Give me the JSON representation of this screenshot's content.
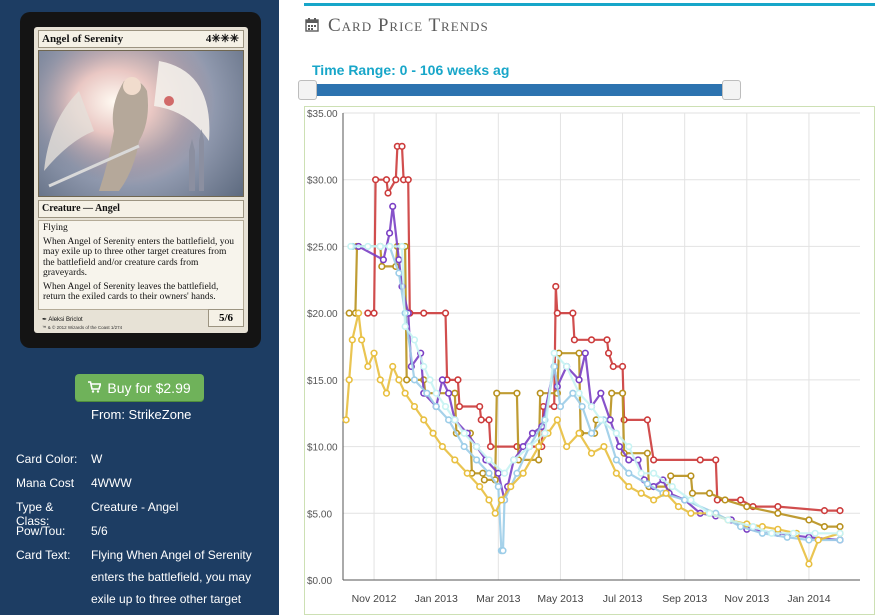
{
  "card": {
    "name": "Angel of Serenity",
    "mana_symbol": "4✳✳✳",
    "type_line": "Creature — Angel",
    "rules": [
      "Flying",
      "When Angel of Serenity enters the battlefield, you may exile up to three other target creatures from the battlefield and/or creature cards from graveyards.",
      "When Angel of Serenity leaves the battlefield, return the exiled cards to their owners' hands."
    ],
    "pt": "5/6",
    "artist": "Aleksi Briclot",
    "copyright": "™ & © 2012 Wizards of the Coast 1/274"
  },
  "buy": {
    "label": "Buy for $2.99",
    "icon": "shopping-cart-icon",
    "from": "From: StrikeZone",
    "color": "#6fb25a"
  },
  "info": [
    {
      "key": "Card Color:",
      "value": "W"
    },
    {
      "key": "Mana Cost",
      "value": "4WWW"
    },
    {
      "key": "Type & Class:",
      "value": "Creature - Angel"
    },
    {
      "key": "Pow/Tou:",
      "value": "5/6"
    },
    {
      "key": "Card Text:",
      "value": "Flying When Angel of Serenity enters the battlefield, you may exile up to three other target"
    }
  ],
  "header": {
    "title": "Card Price Trends",
    "icon": "calendar-icon",
    "accent": "#17a6c9"
  },
  "time_range": {
    "label": "Time Range: 0 - 106 weeks ag",
    "start": 0,
    "end": 106
  },
  "chart_data": {
    "type": "line",
    "y_ticks": [
      "$0.00",
      "$5.00",
      "$10.00",
      "$15.00",
      "$20.00",
      "$25.00",
      "$30.00",
      "$35.00"
    ],
    "ylim": [
      0,
      35
    ],
    "x_ticks": [
      "Nov 2012",
      "Jan 2013",
      "Mar 2013",
      "May 2013",
      "Jul 2013",
      "Sep 2013",
      "Nov 2013",
      "Jan 2014"
    ],
    "x_tick_pos": [
      1.0,
      3.0,
      5.0,
      7.0,
      9.0,
      11.0,
      13.0,
      15.0
    ],
    "xlim": [
      0,
      16
    ],
    "grid": true,
    "series": [
      {
        "color": "#cc3b3b",
        "points": [
          [
            0.8,
            20
          ],
          [
            1.0,
            20
          ],
          [
            1.05,
            30
          ],
          [
            1.4,
            30
          ],
          [
            1.45,
            29
          ],
          [
            1.7,
            30
          ],
          [
            1.75,
            32.5
          ],
          [
            1.9,
            32.5
          ],
          [
            1.95,
            30
          ],
          [
            2.1,
            30
          ],
          [
            2.15,
            20
          ],
          [
            2.6,
            20
          ],
          [
            3.3,
            20
          ],
          [
            3.35,
            15
          ],
          [
            3.7,
            15
          ],
          [
            3.75,
            13
          ],
          [
            4.4,
            13
          ],
          [
            4.45,
            12
          ],
          [
            4.7,
            12
          ],
          [
            4.75,
            10
          ],
          [
            5.6,
            10
          ],
          [
            6.0,
            10
          ],
          [
            6.4,
            10
          ],
          [
            6.45,
            13
          ],
          [
            6.8,
            13
          ],
          [
            6.85,
            22
          ],
          [
            6.9,
            20
          ],
          [
            7.4,
            20
          ],
          [
            7.45,
            18
          ],
          [
            8.0,
            18
          ],
          [
            8.5,
            18
          ],
          [
            8.55,
            17
          ],
          [
            8.7,
            16
          ],
          [
            9.0,
            16
          ],
          [
            9.05,
            12
          ],
          [
            9.8,
            12
          ],
          [
            10.0,
            9
          ],
          [
            11.5,
            9
          ],
          [
            12.0,
            9
          ],
          [
            12.05,
            6
          ],
          [
            12.8,
            6
          ],
          [
            13.2,
            5.5
          ],
          [
            14.0,
            5.5
          ],
          [
            15.5,
            5.2
          ],
          [
            16.0,
            5.2
          ]
        ]
      },
      {
        "color": "#b8911d",
        "points": [
          [
            0.2,
            20
          ],
          [
            0.4,
            20
          ],
          [
            0.45,
            25
          ],
          [
            1.2,
            25
          ],
          [
            1.25,
            23.5
          ],
          [
            1.7,
            23.5
          ],
          [
            1.75,
            25
          ],
          [
            2.0,
            25
          ],
          [
            2.05,
            15
          ],
          [
            2.6,
            15
          ],
          [
            2.65,
            14
          ],
          [
            3.6,
            14
          ],
          [
            3.65,
            11
          ],
          [
            4.1,
            11
          ],
          [
            4.15,
            8
          ],
          [
            4.5,
            8
          ],
          [
            4.55,
            7.5
          ],
          [
            4.9,
            7.5
          ],
          [
            4.95,
            14
          ],
          [
            5.6,
            14
          ],
          [
            5.65,
            9
          ],
          [
            6.3,
            9
          ],
          [
            6.35,
            14
          ],
          [
            6.9,
            14
          ],
          [
            6.95,
            17
          ],
          [
            7.6,
            17
          ],
          [
            7.65,
            11
          ],
          [
            8.1,
            11
          ],
          [
            8.15,
            12
          ],
          [
            8.6,
            12
          ],
          [
            8.65,
            14
          ],
          [
            9.0,
            14
          ],
          [
            9.05,
            9.5
          ],
          [
            9.8,
            9.5
          ],
          [
            9.85,
            7
          ],
          [
            10.5,
            7
          ],
          [
            10.55,
            7.8
          ],
          [
            11.2,
            7.8
          ],
          [
            11.25,
            6.5
          ],
          [
            11.8,
            6.5
          ],
          [
            12.3,
            6
          ],
          [
            13.0,
            5.5
          ],
          [
            14.0,
            5
          ],
          [
            15.0,
            4.5
          ],
          [
            15.5,
            4
          ],
          [
            16.0,
            4
          ]
        ]
      },
      {
        "color": "#7a3fc4",
        "points": [
          [
            0.5,
            25
          ],
          [
            1.3,
            24
          ],
          [
            1.5,
            26
          ],
          [
            1.6,
            28
          ],
          [
            1.8,
            24
          ],
          [
            1.9,
            22
          ],
          [
            2.1,
            20
          ],
          [
            2.2,
            16
          ],
          [
            2.5,
            17
          ],
          [
            2.6,
            14
          ],
          [
            3.0,
            13
          ],
          [
            3.2,
            15
          ],
          [
            3.4,
            14
          ],
          [
            3.6,
            12
          ],
          [
            4.0,
            11
          ],
          [
            4.3,
            10
          ],
          [
            4.6,
            9
          ],
          [
            5.0,
            8
          ],
          [
            5.2,
            6
          ],
          [
            5.3,
            7
          ],
          [
            5.5,
            9
          ],
          [
            5.8,
            10
          ],
          [
            6.1,
            11
          ],
          [
            6.4,
            11.5
          ],
          [
            6.8,
            16
          ],
          [
            6.9,
            14.5
          ],
          [
            7.2,
            16
          ],
          [
            7.6,
            15
          ],
          [
            7.8,
            17
          ],
          [
            8.0,
            13
          ],
          [
            8.3,
            14
          ],
          [
            8.6,
            12
          ],
          [
            8.9,
            10
          ],
          [
            9.2,
            9
          ],
          [
            9.5,
            9
          ],
          [
            9.7,
            7.5
          ],
          [
            10.0,
            7
          ],
          [
            10.3,
            7.5
          ],
          [
            10.5,
            6.5
          ],
          [
            11.0,
            6.0
          ],
          [
            11.5,
            5.0
          ],
          [
            12.0,
            4.8
          ],
          [
            12.5,
            4.5
          ],
          [
            13.0,
            3.8
          ],
          [
            14.0,
            3.5
          ],
          [
            15.0,
            3.2
          ],
          [
            16.0,
            3.0
          ]
        ]
      },
      {
        "color": "#9ccde8",
        "points": [
          [
            0.3,
            25
          ],
          [
            1.5,
            25
          ],
          [
            1.8,
            23
          ],
          [
            2.0,
            20
          ],
          [
            2.3,
            15
          ],
          [
            2.7,
            14
          ],
          [
            3.0,
            13
          ],
          [
            3.4,
            12
          ],
          [
            3.9,
            10
          ],
          [
            4.3,
            9
          ],
          [
            4.7,
            8
          ],
          [
            5.0,
            7
          ],
          [
            5.1,
            2.2
          ],
          [
            5.15,
            2.2
          ],
          [
            5.2,
            6
          ],
          [
            5.6,
            8
          ],
          [
            6.0,
            10
          ],
          [
            6.5,
            12
          ],
          [
            6.8,
            16
          ],
          [
            7.0,
            13
          ],
          [
            7.4,
            14
          ],
          [
            7.7,
            13
          ],
          [
            8.0,
            11
          ],
          [
            8.4,
            12
          ],
          [
            8.8,
            9
          ],
          [
            9.2,
            8
          ],
          [
            9.8,
            7.2
          ],
          [
            10.3,
            6.5
          ],
          [
            11.0,
            6
          ],
          [
            12.0,
            5
          ],
          [
            12.8,
            4
          ],
          [
            13.5,
            3.5
          ],
          [
            14.3,
            3.2
          ],
          [
            15.0,
            3.0
          ],
          [
            16.0,
            3.0
          ]
        ]
      },
      {
        "color": "#e8bf3f",
        "points": [
          [
            0.1,
            12
          ],
          [
            0.2,
            15
          ],
          [
            0.3,
            18
          ],
          [
            0.5,
            20
          ],
          [
            0.6,
            18
          ],
          [
            0.8,
            16
          ],
          [
            1.0,
            17
          ],
          [
            1.2,
            15
          ],
          [
            1.4,
            14
          ],
          [
            1.6,
            16
          ],
          [
            1.8,
            15
          ],
          [
            2.0,
            14
          ],
          [
            2.3,
            13
          ],
          [
            2.6,
            12
          ],
          [
            2.9,
            11
          ],
          [
            3.2,
            10
          ],
          [
            3.6,
            9
          ],
          [
            4.0,
            8
          ],
          [
            4.4,
            7
          ],
          [
            4.7,
            6
          ],
          [
            4.9,
            5
          ],
          [
            5.1,
            6
          ],
          [
            5.4,
            7
          ],
          [
            5.8,
            8
          ],
          [
            6.3,
            10
          ],
          [
            6.6,
            11
          ],
          [
            6.9,
            12
          ],
          [
            7.2,
            10
          ],
          [
            7.6,
            11
          ],
          [
            8.0,
            9.5
          ],
          [
            8.4,
            10
          ],
          [
            8.8,
            8
          ],
          [
            9.2,
            7
          ],
          [
            9.6,
            6.5
          ],
          [
            10.0,
            6
          ],
          [
            10.4,
            6.5
          ],
          [
            10.8,
            5.5
          ],
          [
            11.2,
            5
          ],
          [
            11.8,
            5
          ],
          [
            12.4,
            4.5
          ],
          [
            13.0,
            4.2
          ],
          [
            13.5,
            4
          ],
          [
            14.0,
            3.8
          ],
          [
            14.6,
            3.5
          ],
          [
            15.0,
            1.2
          ],
          [
            15.3,
            3.0
          ],
          [
            16.0,
            3.5
          ]
        ]
      },
      {
        "color": "#c7f3f3",
        "points": [
          [
            0.25,
            25
          ],
          [
            0.8,
            25
          ],
          [
            1.2,
            25
          ],
          [
            1.5,
            25
          ],
          [
            1.9,
            25
          ],
          [
            2.0,
            19
          ],
          [
            2.3,
            18
          ],
          [
            2.6,
            16
          ],
          [
            2.8,
            15
          ],
          [
            3.0,
            14
          ],
          [
            3.3,
            13
          ],
          [
            3.6,
            12
          ],
          [
            3.9,
            11
          ],
          [
            4.3,
            10
          ],
          [
            4.7,
            9
          ],
          [
            5.2,
            8
          ],
          [
            5.5,
            9
          ],
          [
            6.0,
            10
          ],
          [
            6.5,
            11
          ],
          [
            6.8,
            17
          ],
          [
            7.2,
            16
          ],
          [
            7.6,
            14
          ],
          [
            8.0,
            13
          ],
          [
            8.3,
            12
          ],
          [
            8.8,
            11
          ],
          [
            9.2,
            10
          ],
          [
            9.6,
            8
          ],
          [
            10.0,
            8
          ],
          [
            10.6,
            7
          ],
          [
            11.2,
            6
          ],
          [
            11.8,
            5
          ],
          [
            12.4,
            4.5
          ],
          [
            13.2,
            4
          ],
          [
            13.8,
            3.5
          ],
          [
            14.5,
            3.5
          ],
          [
            15.2,
            3.5
          ],
          [
            16.0,
            3.5
          ]
        ]
      }
    ]
  }
}
